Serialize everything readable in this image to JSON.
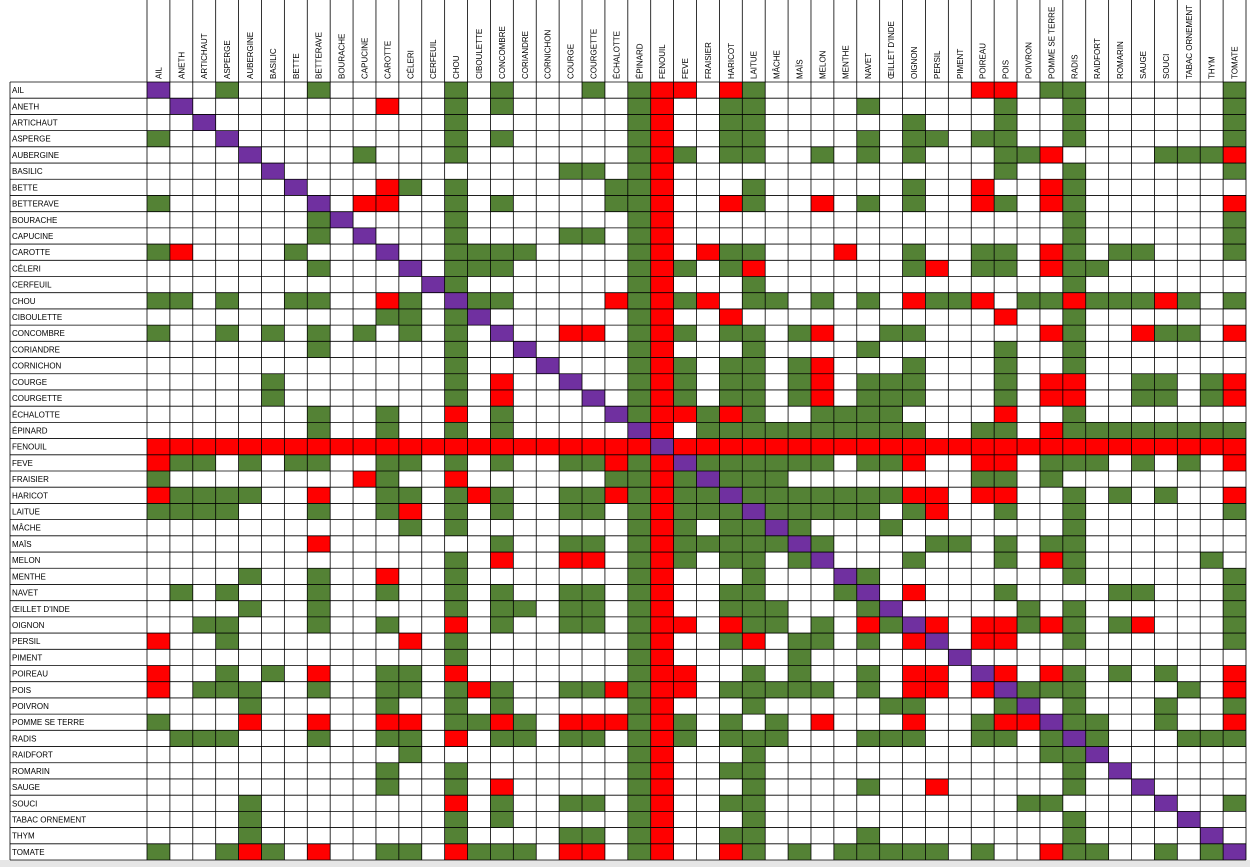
{
  "table": {
    "colors": {
      "good": "#548235",
      "bad": "#ff0000",
      "self": "#7030a0"
    },
    "columns": [
      "AIL",
      "ANETH",
      "ARTICHAUT",
      "ASPERGE",
      "AUBERGINE",
      "BASILIC",
      "BETTE",
      "BETTERAVE",
      "BOURACHE",
      "CAPUCINE",
      "CAROTTE",
      "CÉLERI",
      "CERFEUIL",
      "CHOU",
      "CIBOULETTE",
      "CONCOMBRE",
      "CORIANDRE",
      "CORNICHON",
      "COURGE",
      "COURGETTE",
      "ÉCHALOTTE",
      "ÉPINARD",
      "FENOUIL",
      "FEVE",
      "FRAISIER",
      "HARICOT",
      "LAITUE",
      "MÂCHE",
      "MAÏS",
      "MELON",
      "MENTHE",
      "NAVET",
      "ŒILLET D'INDE",
      "OIGNON",
      "PERSIL",
      "PIMENT",
      "POIREAU",
      "POIS",
      "POIVRON",
      "POMME SE TERRE",
      "RADIS",
      "RAIDFORT",
      "ROMARIN",
      "SAUGE",
      "SOUCI",
      "TABAC ORNEMENT",
      "THYM",
      "TOMATE"
    ],
    "rows": [
      {
        "label": "AIL",
        "good": [
          3,
          7,
          13,
          15,
          19,
          21,
          26,
          39,
          40,
          47
        ],
        "bad": [
          22,
          23,
          25,
          36,
          37
        ]
      },
      {
        "label": "ANETH",
        "good": [
          13,
          15,
          21,
          25,
          26,
          31,
          37,
          40,
          47
        ],
        "bad": [
          10,
          22
        ]
      },
      {
        "label": "ARTICHAUT",
        "good": [
          13,
          21,
          25,
          26,
          33,
          37,
          40,
          47
        ],
        "bad": [
          22
        ]
      },
      {
        "label": "ASPERGE",
        "good": [
          0,
          13,
          15,
          21,
          25,
          26,
          31,
          33,
          34,
          36,
          37,
          40,
          47
        ],
        "bad": [
          22
        ]
      },
      {
        "label": "AUBERGINE",
        "good": [
          9,
          13,
          21,
          23,
          25,
          26,
          29,
          31,
          33,
          37,
          38,
          44,
          45,
          46
        ],
        "bad": [
          22,
          39,
          47
        ]
      },
      {
        "label": "BASILIC",
        "good": [
          18,
          19,
          21,
          37,
          40,
          47
        ],
        "bad": [
          22
        ]
      },
      {
        "label": "BETTE",
        "good": [
          11,
          13,
          20,
          21,
          26,
          33,
          40
        ],
        "bad": [
          10,
          22,
          36,
          39
        ]
      },
      {
        "label": "BETTERAVE",
        "good": [
          0,
          13,
          15,
          20,
          21,
          26,
          31,
          33,
          37,
          40
        ],
        "bad": [
          9,
          10,
          22,
          25,
          29,
          36,
          39,
          47
        ]
      },
      {
        "label": "BOURACHE",
        "good": [
          7,
          13,
          21,
          40,
          47
        ],
        "bad": [
          22
        ]
      },
      {
        "label": "CAPUCINE",
        "good": [
          7,
          13,
          18,
          19,
          21,
          40,
          47
        ],
        "bad": [
          22
        ]
      },
      {
        "label": "CAROTTE",
        "good": [
          0,
          6,
          13,
          14,
          15,
          16,
          21,
          25,
          26,
          33,
          36,
          37,
          40,
          42,
          43,
          47
        ],
        "bad": [
          1,
          22,
          24,
          30,
          39
        ]
      },
      {
        "label": "CÉLERI",
        "good": [
          7,
          13,
          14,
          15,
          21,
          23,
          25,
          33,
          36,
          37,
          40,
          41
        ],
        "bad": [
          22,
          26,
          34,
          39
        ]
      },
      {
        "label": "CERFEUIL",
        "good": [
          13,
          21,
          26,
          40
        ],
        "bad": [
          22
        ]
      },
      {
        "label": "CHOU",
        "good": [
          0,
          1,
          3,
          6,
          7,
          11,
          14,
          15,
          21,
          23,
          26,
          27,
          29,
          31,
          34,
          35,
          38,
          39,
          41,
          42,
          43,
          45,
          47
        ],
        "bad": [
          10,
          20,
          22,
          24,
          33,
          36,
          40,
          44
        ]
      },
      {
        "label": "CIBOULETTE",
        "good": [
          10,
          11,
          13,
          21,
          40
        ],
        "bad": [
          22,
          25,
          37
        ]
      },
      {
        "label": "CONCOMBRE",
        "good": [
          0,
          3,
          5,
          7,
          9,
          11,
          13,
          21,
          23,
          25,
          26,
          28,
          32,
          33,
          40,
          44,
          45
        ],
        "bad": [
          18,
          19,
          22,
          29,
          39,
          43,
          47
        ]
      },
      {
        "label": "CORIANDRE",
        "good": [
          7,
          13,
          21,
          26,
          31,
          37,
          40
        ],
        "bad": [
          22
        ]
      },
      {
        "label": "CORNICHON",
        "good": [
          13,
          21,
          23,
          25,
          26,
          28,
          33,
          37,
          40
        ],
        "bad": [
          22,
          29
        ]
      },
      {
        "label": "COURGE",
        "good": [
          5,
          13,
          21,
          23,
          25,
          26,
          28,
          31,
          32,
          33,
          37,
          43,
          44,
          46
        ],
        "bad": [
          15,
          22,
          29,
          39,
          40,
          47
        ]
      },
      {
        "label": "COURGETTE",
        "good": [
          5,
          13,
          21,
          23,
          25,
          26,
          28,
          31,
          32,
          33,
          37,
          43,
          44,
          46
        ],
        "bad": [
          15,
          22,
          29,
          39,
          40,
          47
        ]
      },
      {
        "label": "ÉCHALOTTE",
        "good": [
          7,
          10,
          15,
          21,
          24,
          26,
          29,
          30,
          31,
          32,
          40
        ],
        "bad": [
          13,
          22,
          23,
          25,
          37
        ]
      },
      {
        "label": "ÉPINARD",
        "good": [
          7,
          10,
          13,
          15,
          24,
          25,
          26,
          27,
          28,
          29,
          30,
          31,
          32,
          33,
          36,
          37,
          40,
          41,
          42,
          43,
          44,
          45,
          46,
          47
        ],
        "bad": [
          22,
          39
        ]
      },
      {
        "label": "FENOUIL",
        "good": [],
        "bad": [
          0,
          1,
          2,
          3,
          4,
          5,
          6,
          7,
          8,
          9,
          10,
          11,
          12,
          13,
          14,
          15,
          16,
          17,
          18,
          19,
          20,
          21,
          23,
          24,
          25,
          26,
          27,
          28,
          29,
          30,
          31,
          32,
          33,
          34,
          35,
          36,
          37,
          38,
          39,
          40,
          41,
          42,
          43,
          44,
          45,
          46,
          47
        ]
      },
      {
        "label": "FEVE",
        "good": [
          1,
          2,
          4,
          6,
          7,
          10,
          11,
          13,
          15,
          18,
          19,
          21,
          24,
          25,
          26,
          27,
          28,
          29,
          31,
          32,
          39,
          40,
          41,
          43,
          45
        ],
        "bad": [
          0,
          20,
          22,
          33,
          36,
          37,
          47
        ]
      },
      {
        "label": "FRAISIER",
        "good": [
          0,
          10,
          20,
          21,
          23,
          25,
          26,
          27,
          36,
          37,
          39
        ],
        "bad": [
          9,
          13,
          22
        ]
      },
      {
        "label": "HARICOT",
        "good": [
          1,
          2,
          3,
          4,
          10,
          11,
          13,
          15,
          18,
          19,
          21,
          23,
          24,
          26,
          27,
          28,
          29,
          30,
          31,
          32,
          40,
          42,
          44
        ],
        "bad": [
          0,
          7,
          14,
          20,
          22,
          33,
          34,
          36,
          37,
          47
        ]
      },
      {
        "label": "LAITUE",
        "good": [
          0,
          1,
          2,
          3,
          7,
          10,
          13,
          15,
          18,
          19,
          21,
          23,
          24,
          25,
          27,
          28,
          29,
          30,
          31,
          33,
          37,
          40,
          47
        ],
        "bad": [
          11,
          22,
          34
        ]
      },
      {
        "label": "MÂCHE",
        "good": [
          11,
          13,
          21,
          23,
          25,
          26,
          28,
          32,
          40
        ],
        "bad": [
          22
        ]
      },
      {
        "label": "MAÏS",
        "good": [
          15,
          18,
          19,
          21,
          23,
          24,
          25,
          26,
          27,
          29,
          34,
          35,
          37,
          39,
          40
        ],
        "bad": [
          7,
          22
        ]
      },
      {
        "label": "MELON",
        "good": [
          13,
          21,
          23,
          25,
          26,
          28,
          33,
          37,
          40,
          46
        ],
        "bad": [
          15,
          18,
          19,
          22,
          39
        ]
      },
      {
        "label": "MENTHE",
        "good": [
          4,
          7,
          13,
          21,
          26,
          31,
          40,
          47
        ],
        "bad": [
          10,
          22
        ]
      },
      {
        "label": "NAVET",
        "good": [
          1,
          3,
          7,
          10,
          13,
          15,
          18,
          19,
          21,
          25,
          26,
          30,
          37,
          42,
          43,
          47
        ],
        "bad": [
          22,
          33
        ]
      },
      {
        "label": "ŒILLET D'INDE",
        "good": [
          4,
          7,
          13,
          15,
          16,
          18,
          19,
          21,
          25,
          26,
          27,
          31,
          38,
          40,
          47
        ],
        "bad": [
          22
        ]
      },
      {
        "label": "OIGNON",
        "good": [
          2,
          3,
          7,
          10,
          15,
          18,
          19,
          21,
          26,
          27,
          29,
          32,
          38,
          40,
          42,
          47
        ],
        "bad": [
          13,
          22,
          23,
          25,
          31,
          34,
          36,
          37,
          39,
          43
        ]
      },
      {
        "label": "PERSIL",
        "good": [
          3,
          13,
          21,
          25,
          28,
          29,
          31,
          40,
          47
        ],
        "bad": [
          0,
          11,
          22,
          26,
          33,
          36,
          37
        ]
      },
      {
        "label": "PIMENT",
        "good": [
          13,
          21,
          28
        ],
        "bad": [
          22
        ]
      },
      {
        "label": "POIREAU",
        "good": [
          3,
          5,
          10,
          11,
          21,
          26,
          28,
          31,
          40,
          42,
          44
        ],
        "bad": [
          0,
          7,
          13,
          22,
          23,
          33,
          34,
          37,
          39,
          47
        ]
      },
      {
        "label": "POIS",
        "good": [
          2,
          3,
          4,
          7,
          10,
          11,
          13,
          15,
          18,
          19,
          21,
          25,
          26,
          27,
          28,
          29,
          31,
          38,
          39,
          40,
          45
        ],
        "bad": [
          0,
          14,
          20,
          22,
          23,
          33,
          34,
          36,
          47
        ]
      },
      {
        "label": "POIVRON",
        "good": [
          4,
          10,
          13,
          15,
          21,
          26,
          32,
          33,
          37,
          40,
          44,
          47
        ],
        "bad": [
          22
        ]
      },
      {
        "label": "POMME SE TERRE",
        "good": [
          0,
          13,
          14,
          16,
          21,
          23,
          25,
          27,
          36,
          40,
          41,
          44
        ],
        "bad": [
          4,
          7,
          10,
          11,
          15,
          18,
          19,
          20,
          22,
          29,
          33,
          37,
          38,
          47
        ]
      },
      {
        "label": "RADIS",
        "good": [
          1,
          2,
          3,
          7,
          10,
          11,
          15,
          16,
          18,
          19,
          21,
          23,
          25,
          26,
          27,
          31,
          32,
          33,
          36,
          37,
          39,
          41,
          45,
          46,
          47
        ],
        "bad": [
          13,
          22
        ]
      },
      {
        "label": "RAIDFORT",
        "good": [
          11,
          21,
          26,
          39,
          40
        ],
        "bad": [
          22
        ]
      },
      {
        "label": "ROMARIN",
        "good": [
          10,
          13,
          21,
          25,
          26,
          40
        ],
        "bad": [
          22
        ]
      },
      {
        "label": "SAUGE",
        "good": [
          10,
          13,
          21,
          26,
          31,
          40
        ],
        "bad": [
          15,
          22,
          34
        ]
      },
      {
        "label": "SOUCI",
        "good": [
          4,
          15,
          18,
          19,
          21,
          25,
          26,
          38,
          39,
          47
        ],
        "bad": [
          13,
          22
        ]
      },
      {
        "label": "TABAC ORNEMENT",
        "good": [
          4,
          13,
          15,
          21,
          26,
          40
        ],
        "bad": [
          22
        ]
      },
      {
        "label": "THYM",
        "good": [
          4,
          13,
          18,
          19,
          21,
          25,
          26,
          31,
          40
        ],
        "bad": [
          22
        ]
      },
      {
        "label": "TOMATE",
        "good": [
          0,
          3,
          5,
          10,
          11,
          14,
          15,
          16,
          21,
          26,
          28,
          30,
          31,
          32,
          33,
          34,
          36,
          40,
          41,
          44,
          46
        ],
        "bad": [
          4,
          7,
          13,
          18,
          19,
          22,
          25,
          39
        ]
      }
    ]
  }
}
